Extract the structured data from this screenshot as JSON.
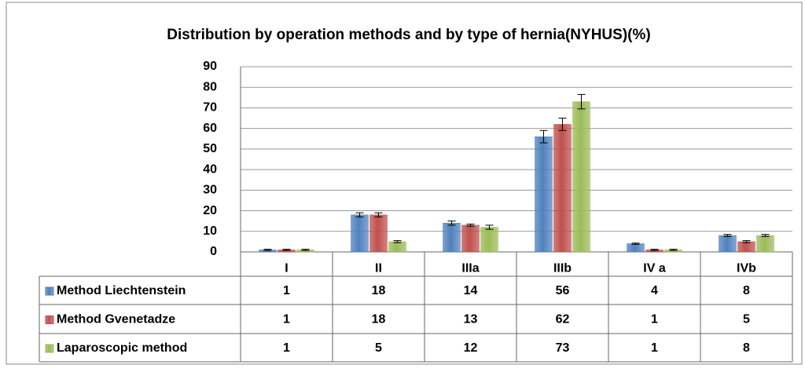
{
  "chart_data": {
    "type": "bar",
    "title": "Distribution by operation methods and by type of hernia(NYHUS)(%)",
    "categories": [
      "I",
      "II",
      "IIIa",
      "IIIb",
      "IV a",
      "IVb"
    ],
    "series": [
      {
        "name": "Method Liechtenstein",
        "color": "#4f81bd",
        "values": [
          1,
          18,
          14,
          56,
          4,
          8
        ],
        "errors": [
          0.3,
          1,
          1,
          3,
          0.3,
          0.5
        ]
      },
      {
        "name": "Method Gvenetadze",
        "color": "#c0504d",
        "values": [
          1,
          18,
          13,
          62,
          1,
          5
        ],
        "errors": [
          0.3,
          1,
          0.5,
          3,
          0.3,
          0.5
        ]
      },
      {
        "name": "Laparoscopic method",
        "color": "#9bbb59",
        "values": [
          1,
          5,
          12,
          73,
          1,
          8
        ],
        "errors": [
          0.3,
          0.5,
          1,
          3.5,
          0.3,
          0.5
        ]
      }
    ],
    "ylim": [
      0,
      90
    ],
    "yticks": [
      0,
      10,
      20,
      30,
      40,
      50,
      60,
      70,
      80,
      90
    ],
    "grid": true
  }
}
